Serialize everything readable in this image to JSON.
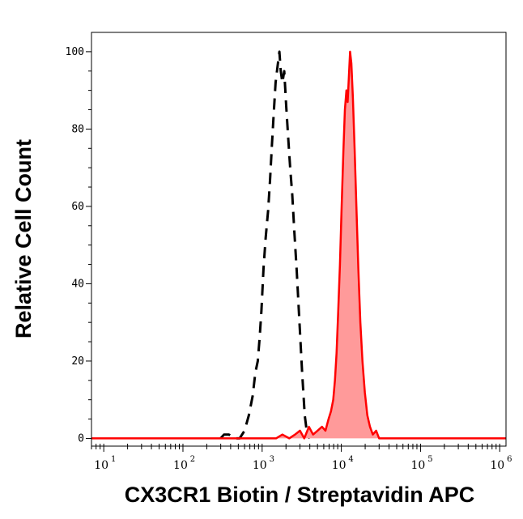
{
  "chart_data": {
    "type": "histogram",
    "xlabel": "CX3CR1 Biotin / Streptavidin APC",
    "ylabel": "Relative Cell Count",
    "x_scale": "log",
    "xlim": [
      7,
      1200000
    ],
    "ylim": [
      -2,
      105
    ],
    "y_ticks": [
      "0",
      "20",
      "40",
      "60",
      "80",
      "100"
    ],
    "y_tick_values": [
      0,
      20,
      40,
      60,
      80,
      100
    ],
    "x_ticks": [
      {
        "base": "10",
        "exp": "1",
        "value": 10
      },
      {
        "base": "10",
        "exp": "2",
        "value": 100
      },
      {
        "base": "10",
        "exp": "3",
        "value": 1000
      },
      {
        "base": "10",
        "exp": "4",
        "value": 10000
      },
      {
        "base": "10",
        "exp": "5",
        "value": 100000
      },
      {
        "base": "10",
        "exp": "6",
        "value": 1000000
      }
    ],
    "series": [
      {
        "style": "dashed",
        "color": "#000000",
        "points": [
          [
            300,
            0
          ],
          [
            330,
            1
          ],
          [
            380,
            1
          ],
          [
            450,
            0
          ],
          [
            520,
            0
          ],
          [
            600,
            2
          ],
          [
            680,
            6
          ],
          [
            760,
            11
          ],
          [
            820,
            17
          ],
          [
            880,
            20
          ],
          [
            930,
            26
          ],
          [
            980,
            33
          ],
          [
            1040,
            44
          ],
          [
            1110,
            52
          ],
          [
            1190,
            59
          ],
          [
            1260,
            67
          ],
          [
            1330,
            76
          ],
          [
            1400,
            84
          ],
          [
            1480,
            92
          ],
          [
            1560,
            96
          ],
          [
            1650,
            100
          ],
          [
            1720,
            95
          ],
          [
            1800,
            92
          ],
          [
            1900,
            95
          ],
          [
            2010,
            86
          ],
          [
            2130,
            78
          ],
          [
            2260,
            70
          ],
          [
            2400,
            63
          ],
          [
            2560,
            53
          ],
          [
            2740,
            43
          ],
          [
            2960,
            30
          ],
          [
            3200,
            17
          ],
          [
            3450,
            6
          ],
          [
            3700,
            1
          ],
          [
            4000,
            0
          ]
        ]
      },
      {
        "style": "filled",
        "color": "#ff0000",
        "fill": "#ff9a9a",
        "points": [
          [
            7,
            0
          ],
          [
            100,
            0
          ],
          [
            500,
            0
          ],
          [
            1500,
            0
          ],
          [
            1800,
            1
          ],
          [
            2200,
            0
          ],
          [
            2600,
            1
          ],
          [
            3000,
            2
          ],
          [
            3400,
            0
          ],
          [
            3900,
            3
          ],
          [
            4400,
            1
          ],
          [
            5000,
            2
          ],
          [
            5700,
            3
          ],
          [
            6300,
            2
          ],
          [
            6900,
            5
          ],
          [
            7400,
            7
          ],
          [
            7900,
            10
          ],
          [
            8300,
            15
          ],
          [
            8700,
            22
          ],
          [
            9100,
            32
          ],
          [
            9600,
            45
          ],
          [
            10100,
            60
          ],
          [
            10600,
            74
          ],
          [
            11100,
            85
          ],
          [
            11600,
            90
          ],
          [
            12000,
            87
          ],
          [
            12400,
            93
          ],
          [
            12900,
            100
          ],
          [
            13400,
            97
          ],
          [
            14000,
            88
          ],
          [
            14700,
            75
          ],
          [
            15500,
            60
          ],
          [
            16400,
            44
          ],
          [
            17400,
            30
          ],
          [
            18500,
            20
          ],
          [
            19800,
            12
          ],
          [
            21300,
            6
          ],
          [
            23000,
            3
          ],
          [
            25000,
            1
          ],
          [
            27500,
            2
          ],
          [
            30000,
            0
          ],
          [
            40000,
            0
          ],
          [
            60000,
            0
          ],
          [
            100000,
            0
          ],
          [
            300000,
            0
          ],
          [
            1200000,
            0
          ]
        ]
      }
    ]
  }
}
